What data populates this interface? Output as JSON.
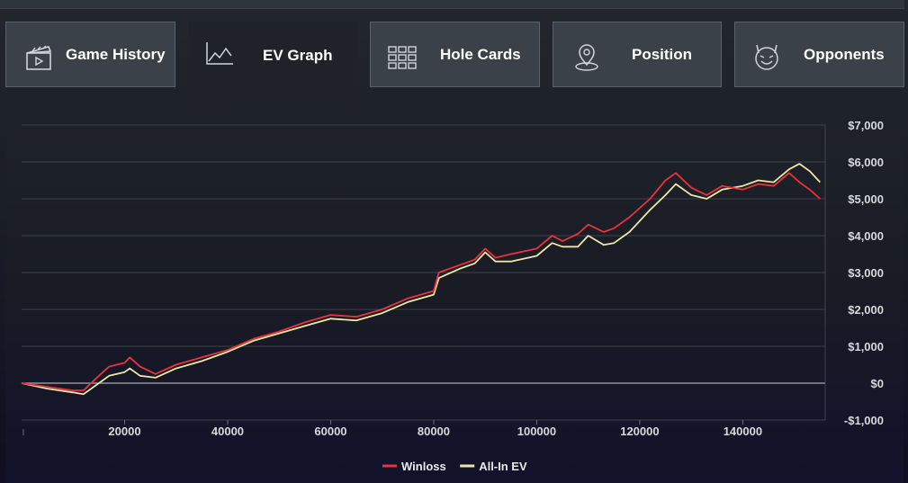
{
  "tabs": [
    {
      "label": "Game History",
      "icon": "clapperboard-icon",
      "active": false
    },
    {
      "label": "EV Graph",
      "icon": "line-chart-icon",
      "active": true
    },
    {
      "label": "Hole Cards",
      "icon": "grid-icon",
      "active": false
    },
    {
      "label": "Position",
      "icon": "map-pin-icon",
      "active": false
    },
    {
      "label": "Opponents",
      "icon": "devil-face-icon",
      "active": false
    }
  ],
  "chart_data": {
    "type": "line",
    "title": "",
    "xlabel": "",
    "ylabel": "",
    "xlim": [
      0,
      156000
    ],
    "ylim": [
      -1000,
      7000
    ],
    "x_ticks": [
      20000,
      40000,
      60000,
      80000,
      100000,
      120000,
      140000
    ],
    "y_ticks": [
      {
        "value": 7000,
        "label": "$7,000"
      },
      {
        "value": 6000,
        "label": "$6,000"
      },
      {
        "value": 5000,
        "label": "$5,000"
      },
      {
        "value": 4000,
        "label": "$4,000"
      },
      {
        "value": 3000,
        "label": "$3,000"
      },
      {
        "value": 2000,
        "label": "$2,000"
      },
      {
        "value": 1000,
        "label": "$1,000"
      },
      {
        "value": 0,
        "label": "$0"
      },
      {
        "value": -1000,
        "label": "-$1,000"
      }
    ],
    "grid": true,
    "legend": "bottom-center",
    "series": [
      {
        "name": "Winloss",
        "color": "#e8333c",
        "x": [
          0,
          5000,
          10000,
          12000,
          15000,
          17000,
          20000,
          21000,
          23000,
          26000,
          30000,
          35000,
          40000,
          45000,
          50000,
          55000,
          60000,
          65000,
          70000,
          75000,
          80000,
          81000,
          85000,
          88000,
          90000,
          92000,
          95000,
          100000,
          103000,
          105000,
          108000,
          110000,
          113000,
          115000,
          118000,
          122000,
          125000,
          127000,
          130000,
          133000,
          136000,
          140000,
          143000,
          146000,
          149000,
          151000,
          153000,
          155000
        ],
        "y": [
          0,
          -100,
          -200,
          -200,
          200,
          450,
          550,
          700,
          450,
          250,
          500,
          700,
          900,
          1200,
          1400,
          1650,
          1850,
          1800,
          2000,
          2300,
          2500,
          3000,
          3200,
          3350,
          3650,
          3400,
          3500,
          3650,
          4000,
          3850,
          4050,
          4300,
          4100,
          4200,
          4500,
          5000,
          5500,
          5700,
          5300,
          5100,
          5350,
          5250,
          5400,
          5350,
          5700,
          5450,
          5250,
          5000
        ]
      },
      {
        "name": "All-In EV",
        "color": "#ece7a6",
        "x": [
          0,
          5000,
          10000,
          12000,
          15000,
          17000,
          20000,
          21000,
          23000,
          26000,
          30000,
          35000,
          40000,
          45000,
          50000,
          55000,
          60000,
          65000,
          70000,
          75000,
          80000,
          81000,
          85000,
          88000,
          90000,
          92000,
          95000,
          100000,
          103000,
          105000,
          108000,
          110000,
          113000,
          115000,
          118000,
          122000,
          125000,
          127000,
          130000,
          133000,
          136000,
          140000,
          143000,
          146000,
          149000,
          151000,
          153000,
          155000
        ],
        "y": [
          0,
          -150,
          -250,
          -300,
          0,
          200,
          300,
          400,
          200,
          150,
          400,
          600,
          850,
          1150,
          1350,
          1550,
          1750,
          1700,
          1900,
          2200,
          2400,
          2850,
          3100,
          3250,
          3550,
          3300,
          3300,
          3450,
          3800,
          3700,
          3700,
          4000,
          3750,
          3800,
          4100,
          4700,
          5100,
          5400,
          5100,
          5000,
          5250,
          5350,
          5500,
          5450,
          5800,
          5950,
          5750,
          5450
        ]
      }
    ]
  }
}
